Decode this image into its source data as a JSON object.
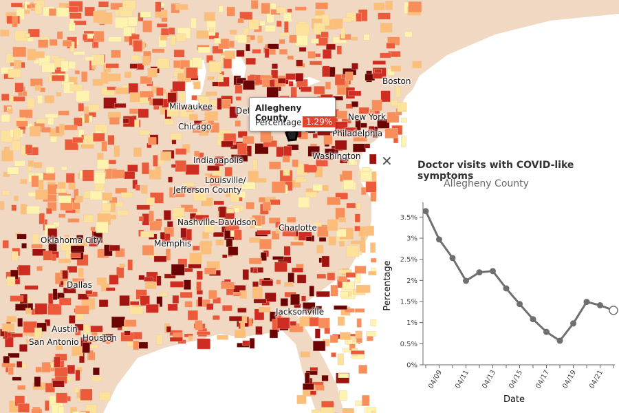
{
  "map": {
    "colors": {
      "base": "#f1d8c3",
      "scale": [
        "#fff3b0",
        "#fde29b",
        "#fcbf7a",
        "#f88f5a",
        "#ec5a3c",
        "#cf2d22",
        "#9e1210",
        "#6b0505"
      ],
      "ocean": "#ffffff",
      "highlight_outline": "#000000"
    },
    "cities": [
      {
        "name": "Boston"
      },
      {
        "name": "New York"
      },
      {
        "name": "Philadelphia"
      },
      {
        "name": "Washington"
      },
      {
        "name": "Milwaukee"
      },
      {
        "name": "Chicago"
      },
      {
        "name": "Det"
      },
      {
        "name": "Indianapolis"
      },
      {
        "name": "Louisville/"
      },
      {
        "name": "Jefferson County"
      },
      {
        "name": "Nashville-Davidson"
      },
      {
        "name": "Charlotte"
      },
      {
        "name": "Oklahoma City"
      },
      {
        "name": "Memphis"
      },
      {
        "name": "Dallas"
      },
      {
        "name": "Jacksonville"
      },
      {
        "name": "Austin"
      },
      {
        "name": "Houston"
      },
      {
        "name": "San Antonio"
      }
    ]
  },
  "tooltip": {
    "title": "Allegheny County",
    "label": "Percentage:",
    "value": "1.29%",
    "value_color": "#e0452b"
  },
  "panel": {
    "close_icon": "close-icon",
    "title": "Doctor visits with COVID-like symptoms",
    "subtitle": "Allegheny County"
  },
  "chart_data": {
    "type": "line",
    "title": "Doctor visits with COVID-like symptoms",
    "subtitle": "Allegheny County",
    "xlabel": "Date",
    "ylabel": "Percentage",
    "ylim": [
      0,
      3.75
    ],
    "yticks": [
      "0%",
      "0.5%",
      "1%",
      "1.5%",
      "2%",
      "2.5%",
      "3%",
      "3.5%"
    ],
    "xticks": [
      "04/09",
      "04/11",
      "04/13",
      "04/15",
      "04/17",
      "04/19",
      "04/21"
    ],
    "x": [
      "04/08",
      "04/09",
      "04/10",
      "04/11",
      "04/12",
      "04/13",
      "04/14",
      "04/15",
      "04/16",
      "04/17",
      "04/18",
      "04/19",
      "04/20",
      "04/21",
      "04/22"
    ],
    "series": [
      {
        "values": [
          3.64,
          2.97,
          2.53,
          1.99,
          2.19,
          2.22,
          1.81,
          1.44,
          1.08,
          0.78,
          0.57,
          0.98,
          1.49,
          1.41,
          1.29
        ],
        "color": "#6f6f6f"
      }
    ],
    "highlight_last_point": true,
    "grid": false
  }
}
